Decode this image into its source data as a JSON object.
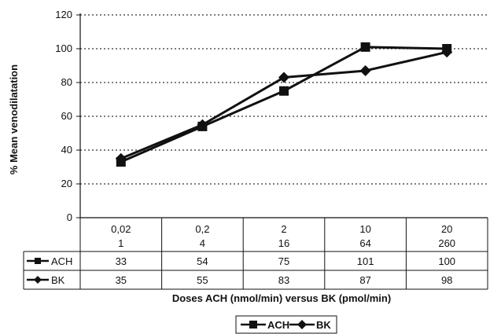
{
  "chart_data": {
    "type": "line",
    "categories": [
      [
        "0,02",
        "1"
      ],
      [
        "0,2",
        "4"
      ],
      [
        "2",
        "16"
      ],
      [
        "10",
        "64"
      ],
      [
        "20",
        "260"
      ]
    ],
    "series": [
      {
        "name": "ACH",
        "values": [
          33,
          54,
          75,
          101,
          100
        ],
        "marker": "square"
      },
      {
        "name": "BK",
        "values": [
          35,
          55,
          83,
          87,
          98
        ],
        "marker": "diamond"
      }
    ],
    "xlabel": "Doses ACH (nmol/min) versus BK (pmol/min)",
    "ylabel": "% Mean venodilatation",
    "ylim": [
      0,
      120
    ],
    "yticks": [
      0,
      20,
      40,
      60,
      80,
      100,
      120
    ],
    "grid": "horizontal dotted",
    "data_table": true,
    "legend_position": "bottom",
    "colors": {
      "line": "#111111",
      "grid": "#333333",
      "background": "#ffffff"
    }
  }
}
